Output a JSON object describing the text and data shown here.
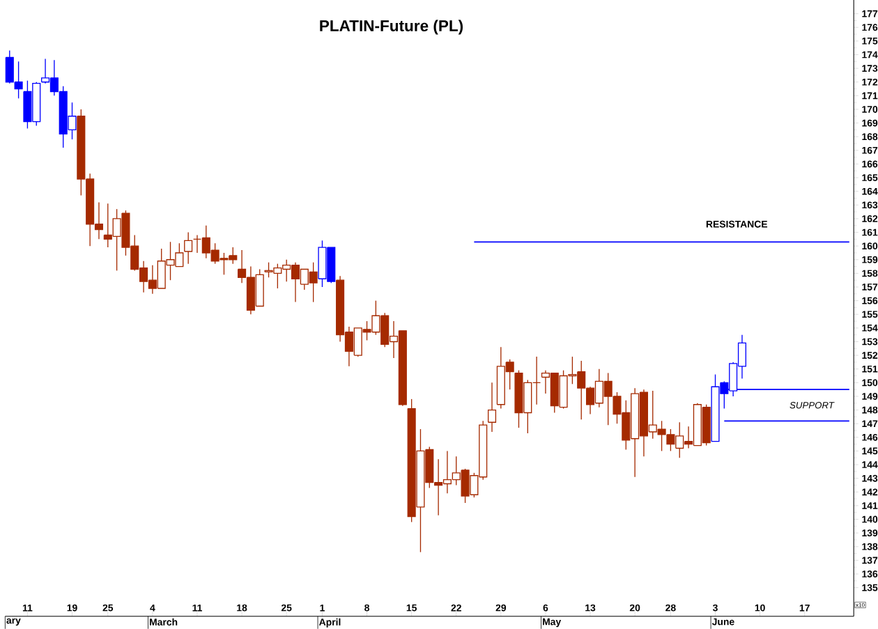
{
  "chart_data": {
    "type": "candlestick",
    "title": "PLATIN-Future  (PL)",
    "categories": [
      null,
      null,
      "11",
      null,
      null,
      null,
      null,
      "19",
      null,
      null,
      null,
      "25",
      null,
      null,
      null,
      null,
      "4",
      null,
      null,
      null,
      null,
      "11",
      null,
      null,
      null,
      null,
      "18",
      null,
      null,
      null,
      null,
      "25",
      null,
      null,
      null,
      "1",
      null,
      null,
      null,
      null,
      "8",
      null,
      null,
      null,
      null,
      "15",
      null,
      null,
      null,
      null,
      "22",
      null,
      null,
      null,
      null,
      "29",
      null,
      null,
      null,
      null,
      "6",
      null,
      null,
      null,
      null,
      "13",
      null,
      null,
      null,
      null,
      "20",
      null,
      null,
      null,
      "28",
      null,
      null,
      null,
      null,
      "3",
      null,
      null,
      null,
      null,
      "10",
      null,
      null,
      null,
      null,
      "17",
      null,
      null,
      null,
      null,
      null
    ],
    "ohlc": [
      [
        173.8,
        174.3,
        171.9,
        172.0
      ],
      [
        172.0,
        173.5,
        170.8,
        171.5
      ],
      [
        171.3,
        172.1,
        168.6,
        169.1
      ],
      [
        169.1,
        172.0,
        168.8,
        171.9
      ],
      [
        172.0,
        173.7,
        171.9,
        172.3
      ],
      [
        172.3,
        173.6,
        171.0,
        171.3
      ],
      [
        171.3,
        171.7,
        167.2,
        168.2
      ],
      [
        168.5,
        170.5,
        167.8,
        169.5
      ],
      [
        169.5,
        170.0,
        163.7,
        164.9
      ],
      [
        164.9,
        165.3,
        160.0,
        161.6
      ],
      [
        161.6,
        163.2,
        160.5,
        161.2
      ],
      [
        160.8,
        163.1,
        159.9,
        160.5
      ],
      [
        160.7,
        162.7,
        158.2,
        162.0
      ],
      [
        162.4,
        162.6,
        159.3,
        159.9
      ],
      [
        160.0,
        160.8,
        158.2,
        158.3
      ],
      [
        158.4,
        158.9,
        156.6,
        157.4
      ],
      [
        157.5,
        158.6,
        156.5,
        156.9
      ],
      [
        156.9,
        159.8,
        156.9,
        158.9
      ],
      [
        158.6,
        160.3,
        157.5,
        159.0
      ],
      [
        158.5,
        160.2,
        158.5,
        159.5
      ],
      [
        159.6,
        161.0,
        158.7,
        160.4
      ],
      [
        160.5,
        160.8,
        159.5,
        160.5
      ],
      [
        160.6,
        161.5,
        159.1,
        159.5
      ],
      [
        159.7,
        160.2,
        158.7,
        158.9
      ],
      [
        159.1,
        159.5,
        157.9,
        159.0
      ],
      [
        159.3,
        159.9,
        158.7,
        159.0
      ],
      [
        158.3,
        159.7,
        157.3,
        157.7
      ],
      [
        157.7,
        158.5,
        155.0,
        155.3
      ],
      [
        155.6,
        158.3,
        155.6,
        157.9
      ],
      [
        158.1,
        158.8,
        157.7,
        158.2
      ],
      [
        158.0,
        158.7,
        156.9,
        158.4
      ],
      [
        158.3,
        159.0,
        157.4,
        158.6
      ],
      [
        158.6,
        158.8,
        155.9,
        157.6
      ],
      [
        157.2,
        158.3,
        156.8,
        158.3
      ],
      [
        158.1,
        158.8,
        155.9,
        157.3
      ],
      [
        157.6,
        160.4,
        157.0,
        159.9
      ],
      [
        159.9,
        159.9,
        157.3,
        157.4
      ],
      [
        157.5,
        157.8,
        153.0,
        153.5
      ],
      [
        153.7,
        154.1,
        151.2,
        152.3
      ],
      [
        152.0,
        154.0,
        151.9,
        154.0
      ],
      [
        153.9,
        154.5,
        153.1,
        153.7
      ],
      [
        153.7,
        156.0,
        153.5,
        154.9
      ],
      [
        154.9,
        155.1,
        152.6,
        152.8
      ],
      [
        153.0,
        154.5,
        151.8,
        153.4
      ],
      [
        153.8,
        153.8,
        148.3,
        148.4
      ],
      [
        148.1,
        148.8,
        139.8,
        140.2
      ],
      [
        140.9,
        146.6,
        137.6,
        145.0
      ],
      [
        145.1,
        145.3,
        142.3,
        142.7
      ],
      [
        142.7,
        144.4,
        140.3,
        142.5
      ],
      [
        142.6,
        145.0,
        141.9,
        142.9
      ],
      [
        142.9,
        144.6,
        142.5,
        143.4
      ],
      [
        143.6,
        143.7,
        141.2,
        141.7
      ],
      [
        141.8,
        143.4,
        141.6,
        143.2
      ],
      [
        143.1,
        147.2,
        142.9,
        146.9
      ],
      [
        147.1,
        150.0,
        146.4,
        148.0
      ],
      [
        148.4,
        152.6,
        148.1,
        151.2
      ],
      [
        151.5,
        151.7,
        149.5,
        150.8
      ],
      [
        150.7,
        150.9,
        146.7,
        147.8
      ],
      [
        147.8,
        150.2,
        146.3,
        150.0
      ],
      [
        150.0,
        151.9,
        148.4,
        150.0
      ],
      [
        150.4,
        150.9,
        149.2,
        150.7
      ],
      [
        150.7,
        150.7,
        147.8,
        148.3
      ],
      [
        148.2,
        150.9,
        148.1,
        150.5
      ],
      [
        150.5,
        151.9,
        149.9,
        150.6
      ],
      [
        150.8,
        151.6,
        147.3,
        149.6
      ],
      [
        149.6,
        149.7,
        147.7,
        148.4
      ],
      [
        148.5,
        151.0,
        148.2,
        150.1
      ],
      [
        150.1,
        150.7,
        146.9,
        149.0
      ],
      [
        149.0,
        149.3,
        147.0,
        147.7
      ],
      [
        147.8,
        148.7,
        145.1,
        145.8
      ],
      [
        145.9,
        149.6,
        143.1,
        149.2
      ],
      [
        149.3,
        149.5,
        144.6,
        146.1
      ],
      [
        146.4,
        149.4,
        145.9,
        146.9
      ],
      [
        146.6,
        147.2,
        145.0,
        146.2
      ],
      [
        146.2,
        146.6,
        145.0,
        145.5
      ],
      [
        145.2,
        147.1,
        144.5,
        146.1
      ],
      [
        145.7,
        146.8,
        145.2,
        145.5
      ],
      [
        145.4,
        148.5,
        145.4,
        148.4
      ],
      [
        148.2,
        148.4,
        145.4,
        145.6
      ],
      [
        145.7,
        150.6,
        145.7,
        149.7
      ],
      [
        150.0,
        150.1,
        148.1,
        149.2
      ],
      [
        149.4,
        151.5,
        149.0,
        151.4
      ],
      [
        151.2,
        153.5,
        150.3,
        152.9
      ],
      null,
      null,
      null,
      null,
      null,
      null,
      null,
      null,
      null,
      null,
      null,
      null
    ],
    "colors": [
      "#0000ff",
      "#0000ff",
      "#0000ff",
      "#0000ff",
      "#0000ff",
      "#0000ff",
      "#0000ff",
      "#0000ff",
      "#a52a00",
      "#a52a00",
      "#a52a00",
      "#a52a00",
      "#a52a00",
      "#a52a00",
      "#a52a00",
      "#a52a00",
      "#a52a00",
      "#a52a00",
      "#a52a00",
      "#a52a00",
      "#a52a00",
      "#a52a00",
      "#a52a00",
      "#a52a00",
      "#a52a00",
      "#a52a00",
      "#a52a00",
      "#a52a00",
      "#a52a00",
      "#a52a00",
      "#a52a00",
      "#a52a00",
      "#a52a00",
      "#a52a00",
      "#a52a00",
      "#0000ff",
      "#0000ff",
      "#a52a00",
      "#a52a00",
      "#a52a00",
      "#a52a00",
      "#a52a00",
      "#a52a00",
      "#a52a00",
      "#a52a00",
      "#a52a00",
      "#a52a00",
      "#a52a00",
      "#a52a00",
      "#a52a00",
      "#a52a00",
      "#a52a00",
      "#a52a00",
      "#a52a00",
      "#a52a00",
      "#a52a00",
      "#a52a00",
      "#a52a00",
      "#a52a00",
      "#a52a00",
      "#a52a00",
      "#a52a00",
      "#a52a00",
      "#a52a00",
      "#a52a00",
      "#a52a00",
      "#a52a00",
      "#a52a00",
      "#a52a00",
      "#a52a00",
      "#a52a00",
      "#a52a00",
      "#a52a00",
      "#a52a00",
      "#a52a00",
      "#a52a00",
      "#a52a00",
      "#a52a00",
      "#a52a00",
      "#0000ff",
      "#0000ff",
      "#0000ff",
      "#0000ff",
      null,
      null,
      null,
      null,
      null,
      null,
      null,
      null,
      null,
      null,
      null,
      null
    ],
    "series": [
      {
        "type": "line",
        "name": "RESISTANCE",
        "color": "#0000ff",
        "values": [
          null,
          null,
          null,
          null,
          null,
          null,
          null,
          null,
          null,
          null,
          null,
          null,
          null,
          null,
          null,
          null,
          null,
          null,
          null,
          null,
          null,
          null,
          null,
          null,
          null,
          null,
          null,
          null,
          null,
          null,
          null,
          null,
          null,
          null,
          null,
          null,
          null,
          null,
          null,
          null,
          null,
          null,
          null,
          null,
          null,
          null,
          null,
          null,
          null,
          null,
          null,
          null,
          160.3,
          160.3,
          160.3,
          160.3,
          160.3,
          160.3,
          160.3,
          160.3,
          160.3,
          160.3,
          160.3,
          160.3,
          160.3,
          160.3,
          160.3,
          160.3,
          160.3,
          160.3,
          160.3,
          160.3,
          160.3,
          160.3,
          160.3,
          160.3,
          160.3,
          160.3,
          160.3,
          160.3,
          160.3,
          160.3,
          160.3,
          160.3,
          160.3,
          160.3,
          160.3,
          160.3,
          160.3,
          160.3,
          160.3,
          160.3,
          160.3,
          160.3,
          160.3
        ]
      },
      {
        "type": "line",
        "name": "SUPPORT",
        "color": "#0000ff",
        "values": [
          null,
          null,
          null,
          null,
          null,
          null,
          null,
          null,
          null,
          null,
          null,
          null,
          null,
          null,
          null,
          null,
          null,
          null,
          null,
          null,
          null,
          null,
          null,
          null,
          null,
          null,
          null,
          null,
          null,
          null,
          null,
          null,
          null,
          null,
          null,
          null,
          null,
          null,
          null,
          null,
          null,
          null,
          null,
          null,
          null,
          null,
          null,
          null,
          null,
          null,
          null,
          null,
          null,
          null,
          null,
          null,
          null,
          null,
          null,
          null,
          null,
          null,
          null,
          null,
          null,
          null,
          null,
          null,
          null,
          null,
          null,
          null,
          null,
          null,
          null,
          null,
          null,
          null,
          null,
          null,
          149.5,
          149.5,
          149.5,
          149.5,
          149.5,
          149.5,
          149.5,
          149.5,
          149.5,
          149.5,
          149.5,
          149.5,
          149.5,
          149.5,
          149.5
        ]
      },
      {
        "type": "line",
        "color": "#0000ff",
        "values": [
          null,
          null,
          null,
          null,
          null,
          null,
          null,
          null,
          null,
          null,
          null,
          null,
          null,
          null,
          null,
          null,
          null,
          null,
          null,
          null,
          null,
          null,
          null,
          null,
          null,
          null,
          null,
          null,
          null,
          null,
          null,
          null,
          null,
          null,
          null,
          null,
          null,
          null,
          null,
          null,
          null,
          null,
          null,
          null,
          null,
          null,
          null,
          null,
          null,
          null,
          null,
          null,
          null,
          null,
          null,
          null,
          null,
          null,
          null,
          null,
          null,
          null,
          null,
          null,
          null,
          null,
          null,
          null,
          null,
          null,
          null,
          null,
          null,
          null,
          null,
          null,
          null,
          null,
          null,
          null,
          147.2,
          147.2,
          147.2,
          147.2,
          147.2,
          147.2,
          147.2,
          147.2,
          147.2,
          147.2,
          147.2,
          147.2,
          147.2,
          147.2,
          147.2
        ]
      }
    ],
    "ylim": [
      132.9,
      178.0
    ],
    "yticks": [
      135,
      136,
      137,
      138,
      139,
      140,
      141,
      142,
      143,
      144,
      145,
      146,
      147,
      148,
      149,
      150,
      151,
      152,
      153,
      154,
      155,
      156,
      157,
      158,
      159,
      160,
      161,
      162,
      163,
      164,
      165,
      166,
      167,
      168,
      169,
      170,
      171,
      172,
      173,
      174,
      175,
      176,
      177
    ],
    "ylabel": "x10",
    "annotations": [
      "ary",
      "March",
      "April",
      "May",
      "June"
    ]
  }
}
